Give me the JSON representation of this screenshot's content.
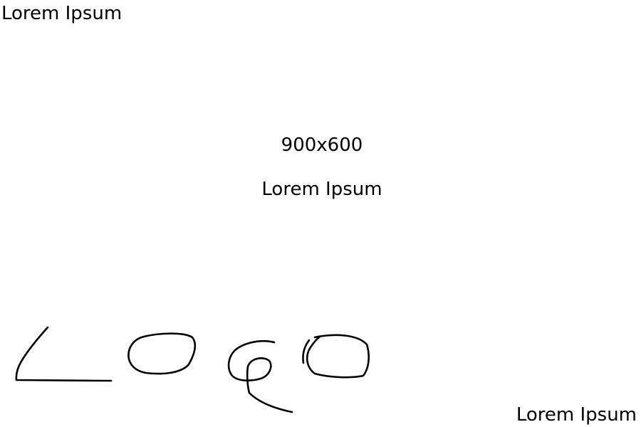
{
  "corner_texts": {
    "top_left": "Lorem Ipsum",
    "bottom_right": "Lorem Ipsum"
  },
  "center": {
    "size_label": "900x600",
    "text": "Lorem Ipsum"
  },
  "logo": {
    "text": "Logo"
  },
  "colors": {
    "background": "#ffffff",
    "text": "#000000",
    "stroke": "#000000"
  }
}
